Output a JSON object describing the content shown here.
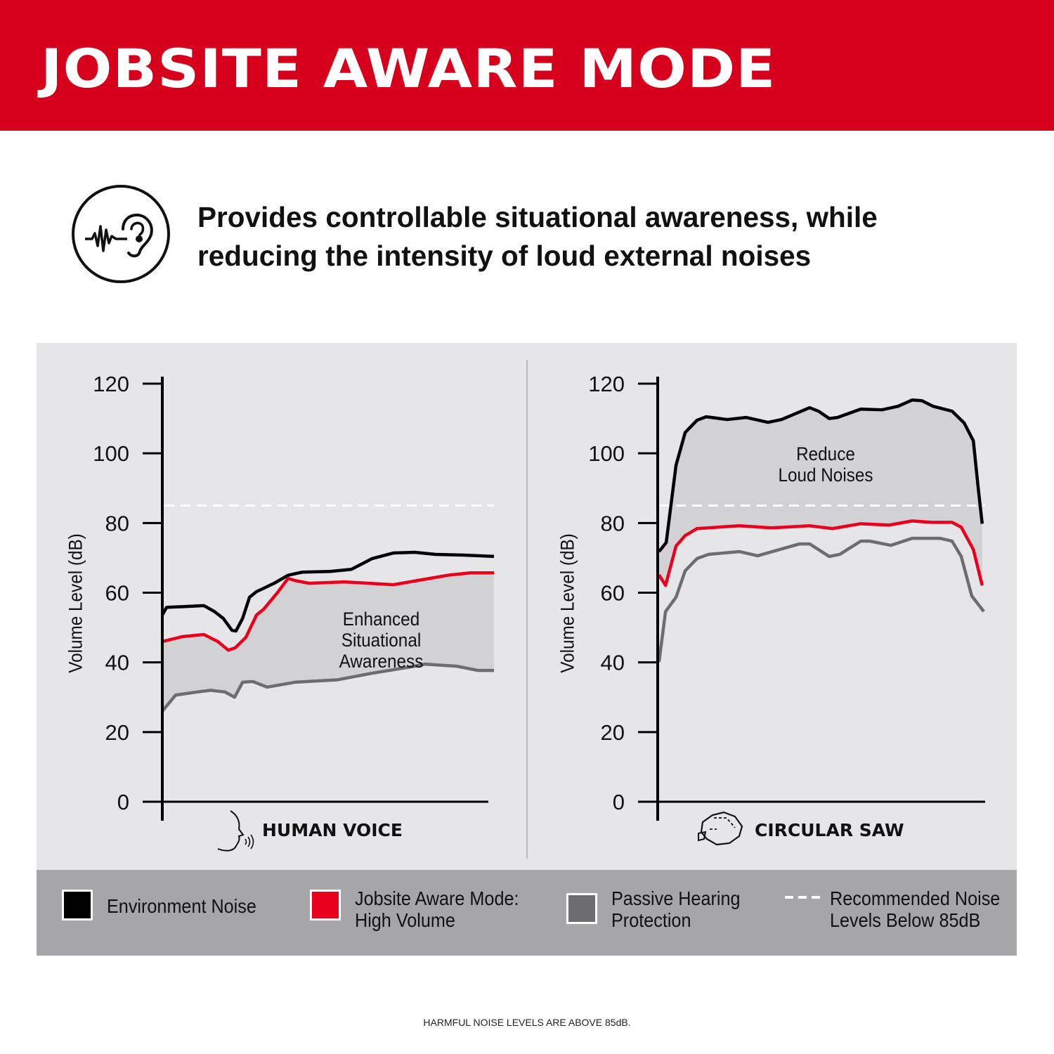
{
  "header": {
    "title": "JOBSITE AWARE MODE",
    "color": "#d7001c"
  },
  "intro": {
    "icon": "ear-sound-wave-icon",
    "text_line1": "Provides controllable situational awareness, while",
    "text_line2": "reducing the intensity of loud external noises"
  },
  "chart_data": [
    {
      "type": "line",
      "xlabel": "HUMAN VOICE",
      "x_icon": "human-voice-icon",
      "ylabel": "Volume Level (dB)",
      "ylim": [
        0,
        120
      ],
      "yticks": [
        "0",
        "20",
        "40",
        "60",
        "80",
        "100",
        "120"
      ],
      "xlim": [
        0,
        100
      ],
      "grid": false,
      "reference_line": 85,
      "annotation": {
        "line1": "Enhanced",
        "line2": "Situational Awareness"
      },
      "shaded_between": [
        "Passive Hearing Protection",
        "Jobsite Aware Mode: High Volume"
      ],
      "series": [
        {
          "name": "Environment Noise",
          "color": "#000000",
          "points": [
            [
              0,
              53.6
            ],
            [
              1.3,
              55.8
            ],
            [
              6.1,
              56
            ],
            [
              12.5,
              56.3
            ],
            [
              15.7,
              54.6
            ],
            [
              18.4,
              52.6
            ],
            [
              21,
              49.2
            ],
            [
              22.2,
              49
            ],
            [
              24.2,
              52.6
            ],
            [
              26.3,
              58.7
            ],
            [
              28.4,
              60.3
            ],
            [
              33.7,
              62.7
            ],
            [
              37.9,
              65
            ],
            [
              42.2,
              65.9
            ],
            [
              50.6,
              66.1
            ],
            [
              57,
              66.7
            ],
            [
              63.3,
              69.8
            ],
            [
              69.7,
              71.4
            ],
            [
              76.1,
              71.6
            ],
            [
              82.4,
              71
            ],
            [
              90.9,
              70.8
            ],
            [
              100,
              70.4
            ]
          ]
        },
        {
          "name": "Jobsite Aware Mode: High Volume",
          "color": "#e8001c",
          "points": [
            [
              0,
              46
            ],
            [
              6.1,
              47.4
            ],
            [
              12.5,
              48
            ],
            [
              16.7,
              46
            ],
            [
              19.9,
              43.5
            ],
            [
              22,
              44.2
            ],
            [
              25.2,
              47.2
            ],
            [
              28.4,
              53.6
            ],
            [
              30.5,
              55.2
            ],
            [
              34.7,
              60
            ],
            [
              37.9,
              64.1
            ],
            [
              40,
              63.5
            ],
            [
              44.3,
              62.7
            ],
            [
              54.9,
              63.1
            ],
            [
              69.7,
              62.3
            ],
            [
              78.2,
              63.7
            ],
            [
              86.7,
              65.1
            ],
            [
              93,
              65.7
            ],
            [
              100,
              65.7
            ]
          ]
        },
        {
          "name": "Passive Hearing Protection",
          "color": "#6d6d70",
          "points": [
            [
              0,
              26
            ],
            [
              4,
              30.6
            ],
            [
              10.4,
              31.5
            ],
            [
              14.6,
              32
            ],
            [
              18.9,
              31.5
            ],
            [
              21.8,
              30
            ],
            [
              24.2,
              34.3
            ],
            [
              27.3,
              34.5
            ],
            [
              31.6,
              32.9
            ],
            [
              40,
              34.3
            ],
            [
              52.8,
              35
            ],
            [
              63.3,
              36.9
            ],
            [
              76.1,
              38.9
            ],
            [
              79.2,
              39.5
            ],
            [
              88.8,
              38.9
            ],
            [
              95.1,
              37.7
            ],
            [
              100,
              37.7
            ]
          ]
        }
      ]
    },
    {
      "type": "line",
      "xlabel": "CIRCULAR SAW",
      "x_icon": "circular-saw-icon",
      "ylabel": "Volume Level (dB)",
      "ylim": [
        0,
        120
      ],
      "yticks": [
        "0",
        "20",
        "40",
        "60",
        "80",
        "100",
        "120"
      ],
      "xlim": [
        0,
        100
      ],
      "grid": false,
      "reference_line": 85,
      "annotation": {
        "line1": "Reduce",
        "line2": "Loud Noises"
      },
      "shaded_between": [
        "Jobsite Aware Mode: High Volume",
        "Environment Noise"
      ],
      "series": [
        {
          "name": "Environment Noise",
          "color": "#000000",
          "points": [
            [
              0.4,
              71.8
            ],
            [
              2.6,
              74.4
            ],
            [
              5.6,
              96.6
            ],
            [
              8.4,
              106
            ],
            [
              12,
              109.5
            ],
            [
              14.8,
              110.5
            ],
            [
              21.2,
              109.7
            ],
            [
              27,
              110.3
            ],
            [
              33.7,
              108.9
            ],
            [
              37.8,
              109.7
            ],
            [
              46.4,
              113.1
            ],
            [
              49.1,
              112.1
            ],
            [
              52.4,
              110
            ],
            [
              54.9,
              110.3
            ],
            [
              62,
              112.7
            ],
            [
              68.5,
              112.5
            ],
            [
              73.4,
              113.5
            ],
            [
              77.7,
              115.3
            ],
            [
              80.7,
              115.1
            ],
            [
              84.1,
              113.5
            ],
            [
              89.9,
              112.1
            ],
            [
              93.6,
              108.7
            ],
            [
              96.4,
              103.6
            ],
            [
              97.9,
              89.9
            ],
            [
              99.1,
              79.8
            ]
          ]
        },
        {
          "name": "Jobsite Aware Mode: High Volume",
          "color": "#e8001c",
          "points": [
            [
              0.4,
              65.1
            ],
            [
              2.4,
              62.1
            ],
            [
              5.6,
              73.4
            ],
            [
              8.4,
              76.4
            ],
            [
              12,
              78.4
            ],
            [
              24.9,
              79.2
            ],
            [
              34.8,
              78.6
            ],
            [
              46.4,
              79.2
            ],
            [
              53.4,
              78.4
            ],
            [
              62,
              79.8
            ],
            [
              70.6,
              79.4
            ],
            [
              77.7,
              80.6
            ],
            [
              83.5,
              80.2
            ],
            [
              89.9,
              80.2
            ],
            [
              92.7,
              78.8
            ],
            [
              96.4,
              72.4
            ],
            [
              99.1,
              62.1
            ]
          ]
        },
        {
          "name": "Passive Hearing Protection",
          "color": "#6d6d70",
          "points": [
            [
              0.4,
              40.1
            ],
            [
              2.4,
              54.6
            ],
            [
              5.6,
              58.7
            ],
            [
              8.4,
              66.3
            ],
            [
              12,
              69.8
            ],
            [
              15.5,
              71
            ],
            [
              24.9,
              71.8
            ],
            [
              30.5,
              70.6
            ],
            [
              43.3,
              74
            ],
            [
              46.4,
              74
            ],
            [
              52.4,
              70.4
            ],
            [
              55.6,
              71
            ],
            [
              62,
              74.8
            ],
            [
              64.8,
              74.8
            ],
            [
              71.2,
              73.6
            ],
            [
              77.7,
              75.6
            ],
            [
              86.3,
              75.6
            ],
            [
              89.9,
              74.8
            ],
            [
              92.7,
              70.4
            ],
            [
              95.9,
              59.1
            ],
            [
              99.6,
              54.6
            ]
          ]
        }
      ]
    }
  ],
  "legend": [
    {
      "line1": "Environment Noise",
      "line2": "",
      "color": "#000000"
    },
    {
      "line1": "Jobsite Aware Mode:",
      "line2": "High Volume",
      "color": "#e8001c"
    },
    {
      "line1": "Passive Hearing",
      "line2": "Protection",
      "color": "#6d6d70"
    },
    {
      "line1": "Recommended Noise",
      "line2": "Levels Below 85dB",
      "style": "white-dashed"
    }
  ],
  "footer": "HARMFUL NOISE LEVELS ARE ABOVE 85dB."
}
